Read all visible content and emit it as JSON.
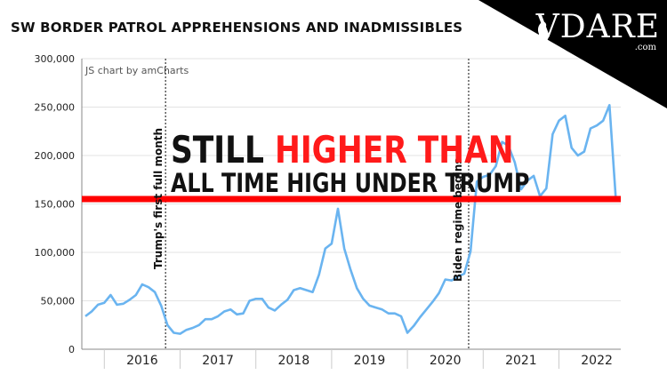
{
  "title": "SW BORDER PATROL APPREHENSIONS AND INADMISSIBLES",
  "logo": {
    "word": "VDARE",
    "sub": ".com"
  },
  "credit": "JS chart by amCharts",
  "annotations": {
    "trump_line": "Trump's first full month",
    "biden_line": "Biden regime begins",
    "headline_part1": "STILL",
    "headline_part2": "HIGHER THAN",
    "headline_line2": "ALL TIME HIGH UNDER TRUMP",
    "reference_value": 155000
  },
  "colors": {
    "series": "#6ab4f0",
    "reference": "#ff0000",
    "headline_accent": "#ff1a1a"
  },
  "chart_data": {
    "type": "line",
    "title": "SW BORDER PATROL APPREHENSIONS AND INADMISSIBLES",
    "xlabel": "",
    "ylabel": "",
    "ylim": [
      0,
      300000
    ],
    "yticks": [
      "0",
      "50,000",
      "100,000",
      "150,000",
      "200,000",
      "250,000",
      "300,000"
    ],
    "ytick_values": [
      0,
      50000,
      100000,
      150000,
      200000,
      250000,
      300000
    ],
    "xticks": [
      "2016",
      "2017",
      "2018",
      "2019",
      "2020",
      "2021",
      "2022"
    ],
    "grid": true,
    "x_start": "2015-10",
    "series": [
      {
        "values": [
          34000,
          39000,
          46000,
          48000,
          56000,
          46000,
          47000,
          51000,
          56000,
          67000,
          64000,
          59000,
          45000,
          25000,
          17000,
          16000,
          20000,
          22000,
          25000,
          31000,
          31000,
          34000,
          39000,
          41000,
          36000,
          37000,
          50000,
          52000,
          52000,
          43000,
          40000,
          46000,
          51000,
          61000,
          63000,
          61000,
          59000,
          77000,
          104000,
          109000,
          145000,
          104000,
          82000,
          63000,
          52000,
          45000,
          43000,
          41000,
          37000,
          37000,
          34000,
          17000,
          24000,
          33000,
          41000,
          49000,
          58000,
          72000,
          71000,
          75000,
          78000,
          101000,
          173000,
          178000,
          180000,
          189000,
          214000,
          210000,
          193000,
          165000,
          174000,
          179000,
          158000,
          166000,
          222000,
          236000,
          241000,
          208000,
          200000,
          204000,
          228000,
          231000,
          236000,
          252000,
          156000
        ]
      }
    ]
  }
}
